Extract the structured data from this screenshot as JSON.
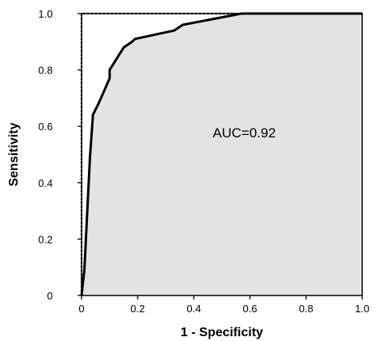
{
  "chart_data": {
    "type": "area",
    "title": "",
    "xlabel": "1 - Specificity",
    "ylabel": "Sensitivity",
    "xlim": [
      0,
      1.0
    ],
    "ylim": [
      0,
      1.0
    ],
    "x_ticks": [
      "0",
      "0.2",
      "0.4",
      "0.6",
      "0.8",
      "1.0"
    ],
    "y_ticks": [
      "0",
      "0.2",
      "0.4",
      "0.6",
      "0.8",
      "1.0"
    ],
    "grid": false,
    "annotation": "AUC=0.92",
    "colors": {
      "fill": "#e3e3e3",
      "line": "#000000"
    },
    "series": [
      {
        "style": "solid",
        "x": [
          0.0,
          0.01,
          0.03,
          0.04,
          0.04,
          0.06,
          0.1,
          0.1,
          0.15,
          0.18,
          0.19,
          0.33,
          0.36,
          0.57,
          1.0
        ],
        "y": [
          0.0,
          0.09,
          0.49,
          0.63,
          0.64,
          0.68,
          0.77,
          0.8,
          0.88,
          0.9,
          0.91,
          0.94,
          0.96,
          1.0,
          1.0
        ]
      },
      {
        "style": "dotted",
        "x": [
          0.0,
          0.0,
          1.0
        ],
        "y": [
          0.0,
          1.0,
          1.0
        ]
      }
    ]
  }
}
